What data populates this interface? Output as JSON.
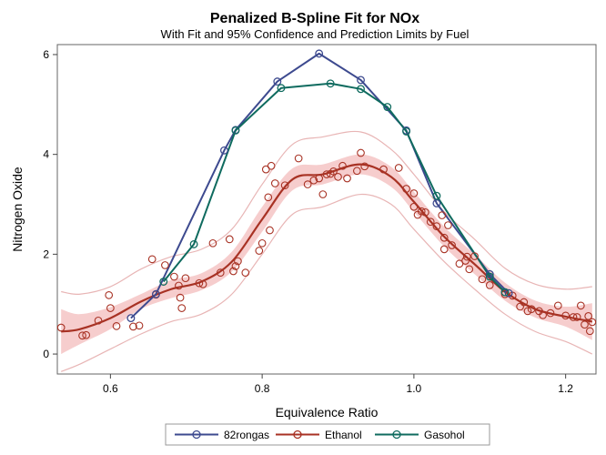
{
  "chart_data": {
    "type": "line",
    "title": "Penalized B-Spline Fit for NOx",
    "subtitle": "With Fit and 95% Confidence and Prediction Limits by Fuel",
    "xlabel": "Equivalence Ratio",
    "ylabel": "Nitrogen Oxide",
    "xlim": [
      0.53,
      1.24
    ],
    "ylim": [
      -0.4,
      6.2
    ],
    "xticks": [
      "0.6",
      "0.8",
      "1.0",
      "1.2"
    ],
    "xtick_values": [
      0.6,
      0.8,
      1.0,
      1.2
    ],
    "yticks": [
      "0",
      "2",
      "4",
      "6"
    ],
    "ytick_values": [
      0,
      2,
      4,
      6
    ],
    "legend": {
      "position": "bottom",
      "entries": [
        "82rongas",
        "Ethanol",
        "Gasohol"
      ]
    },
    "colors": {
      "82rongas": "#3d4a8f",
      "Ethanol": "#a83224",
      "Gasohol": "#0f6b5f",
      "confidence_band": "#f4c4c4",
      "prediction_limits": "#e8b5b5"
    },
    "series": [
      {
        "name": "82rongas",
        "style": "line-markers",
        "x": [
          0.627,
          0.66,
          0.75,
          0.765,
          0.82,
          0.875,
          0.93,
          0.99,
          1.03,
          1.1,
          1.125
        ],
        "y": [
          0.72,
          1.2,
          4.08,
          4.49,
          5.46,
          6.02,
          5.49,
          4.48,
          3.02,
          1.6,
          1.22
        ]
      },
      {
        "name": "Gasohol",
        "style": "line-markers",
        "x": [
          0.67,
          0.71,
          0.765,
          0.825,
          0.89,
          0.93,
          0.965,
          0.99,
          1.03,
          1.1,
          1.12
        ],
        "y": [
          1.45,
          2.2,
          4.48,
          5.33,
          5.42,
          5.31,
          4.95,
          4.46,
          3.17,
          1.55,
          1.24
        ]
      },
      {
        "name": "Ethanol",
        "style": "markers",
        "x": [
          0.535,
          0.563,
          0.568,
          0.584,
          0.598,
          0.6,
          0.608,
          0.63,
          0.638,
          0.655,
          0.66,
          0.672,
          0.684,
          0.69,
          0.692,
          0.694,
          0.699,
          0.717,
          0.722,
          0.735,
          0.745,
          0.757,
          0.762,
          0.765,
          0.768,
          0.778,
          0.796,
          0.8,
          0.805,
          0.808,
          0.81,
          0.812,
          0.817,
          0.83,
          0.848,
          0.86,
          0.868,
          0.875,
          0.88,
          0.885,
          0.89,
          0.894,
          0.9,
          0.906,
          0.912,
          0.925,
          0.93,
          0.935,
          0.96,
          0.98,
          0.99,
          1.0,
          1.0,
          1.005,
          1.01,
          1.015,
          1.022,
          1.03,
          1.037,
          1.04,
          1.04,
          1.045,
          1.05,
          1.06,
          1.068,
          1.07,
          1.073,
          1.08,
          1.09,
          1.1,
          1.12,
          1.13,
          1.14,
          1.145,
          1.15,
          1.155,
          1.165,
          1.17,
          1.18,
          1.19,
          1.2,
          1.21,
          1.215,
          1.22,
          1.225,
          1.23,
          1.232,
          1.235
        ],
        "y": [
          0.53,
          0.37,
          0.38,
          0.67,
          1.18,
          0.92,
          0.56,
          0.55,
          0.57,
          1.9,
          1.19,
          1.78,
          1.55,
          1.37,
          1.13,
          0.92,
          1.52,
          1.42,
          1.4,
          2.22,
          1.63,
          2.3,
          1.66,
          1.76,
          1.86,
          1.63,
          2.07,
          2.22,
          3.7,
          3.14,
          2.48,
          3.77,
          3.42,
          3.38,
          3.92,
          3.4,
          3.48,
          3.52,
          3.2,
          3.6,
          3.61,
          3.66,
          3.55,
          3.77,
          3.52,
          3.67,
          4.03,
          3.76,
          3.7,
          3.73,
          3.31,
          3.22,
          2.95,
          2.79,
          2.86,
          2.84,
          2.65,
          2.56,
          2.78,
          2.33,
          2.1,
          2.58,
          2.18,
          1.81,
          1.87,
          1.95,
          1.7,
          1.96,
          1.5,
          1.38,
          1.2,
          1.17,
          0.95,
          1.04,
          0.86,
          0.9,
          0.86,
          0.78,
          0.82,
          0.97,
          0.77,
          0.74,
          0.74,
          0.97,
          0.59,
          0.76,
          0.46,
          0.64
        ]
      },
      {
        "name": "Ethanol fit",
        "style": "line",
        "x": [
          0.535,
          0.56,
          0.6,
          0.64,
          0.68,
          0.72,
          0.76,
          0.8,
          0.84,
          0.88,
          0.93,
          0.97,
          1.0,
          1.04,
          1.08,
          1.12,
          1.16,
          1.2,
          1.235
        ],
        "y": [
          0.45,
          0.5,
          0.72,
          1.05,
          1.3,
          1.45,
          1.85,
          2.7,
          3.5,
          3.6,
          3.8,
          3.55,
          3.05,
          2.35,
          1.8,
          1.25,
          0.9,
          0.75,
          0.65
        ],
        "band_lower": [
          0.0,
          0.2,
          0.5,
          0.9,
          1.12,
          1.28,
          1.65,
          2.45,
          3.28,
          3.4,
          3.6,
          3.35,
          2.85,
          2.15,
          1.6,
          1.07,
          0.73,
          0.55,
          0.28
        ],
        "band_upper": [
          0.9,
          0.8,
          0.94,
          1.2,
          1.48,
          1.62,
          2.05,
          2.95,
          3.72,
          3.8,
          4.0,
          3.75,
          3.25,
          2.55,
          2.0,
          1.43,
          1.07,
          0.95,
          1.02
        ],
        "pred_lower": [
          -0.35,
          -0.2,
          0.1,
          0.4,
          0.65,
          0.8,
          1.2,
          2.0,
          2.8,
          2.95,
          3.2,
          3.0,
          2.5,
          1.85,
          1.3,
          0.8,
          0.45,
          0.25,
          0.0
        ],
        "pred_upper": [
          1.25,
          1.2,
          1.35,
          1.7,
          1.95,
          2.1,
          2.5,
          3.4,
          4.2,
          4.35,
          4.45,
          4.1,
          3.6,
          2.85,
          2.3,
          1.72,
          1.4,
          1.3,
          1.35
        ]
      }
    ]
  }
}
